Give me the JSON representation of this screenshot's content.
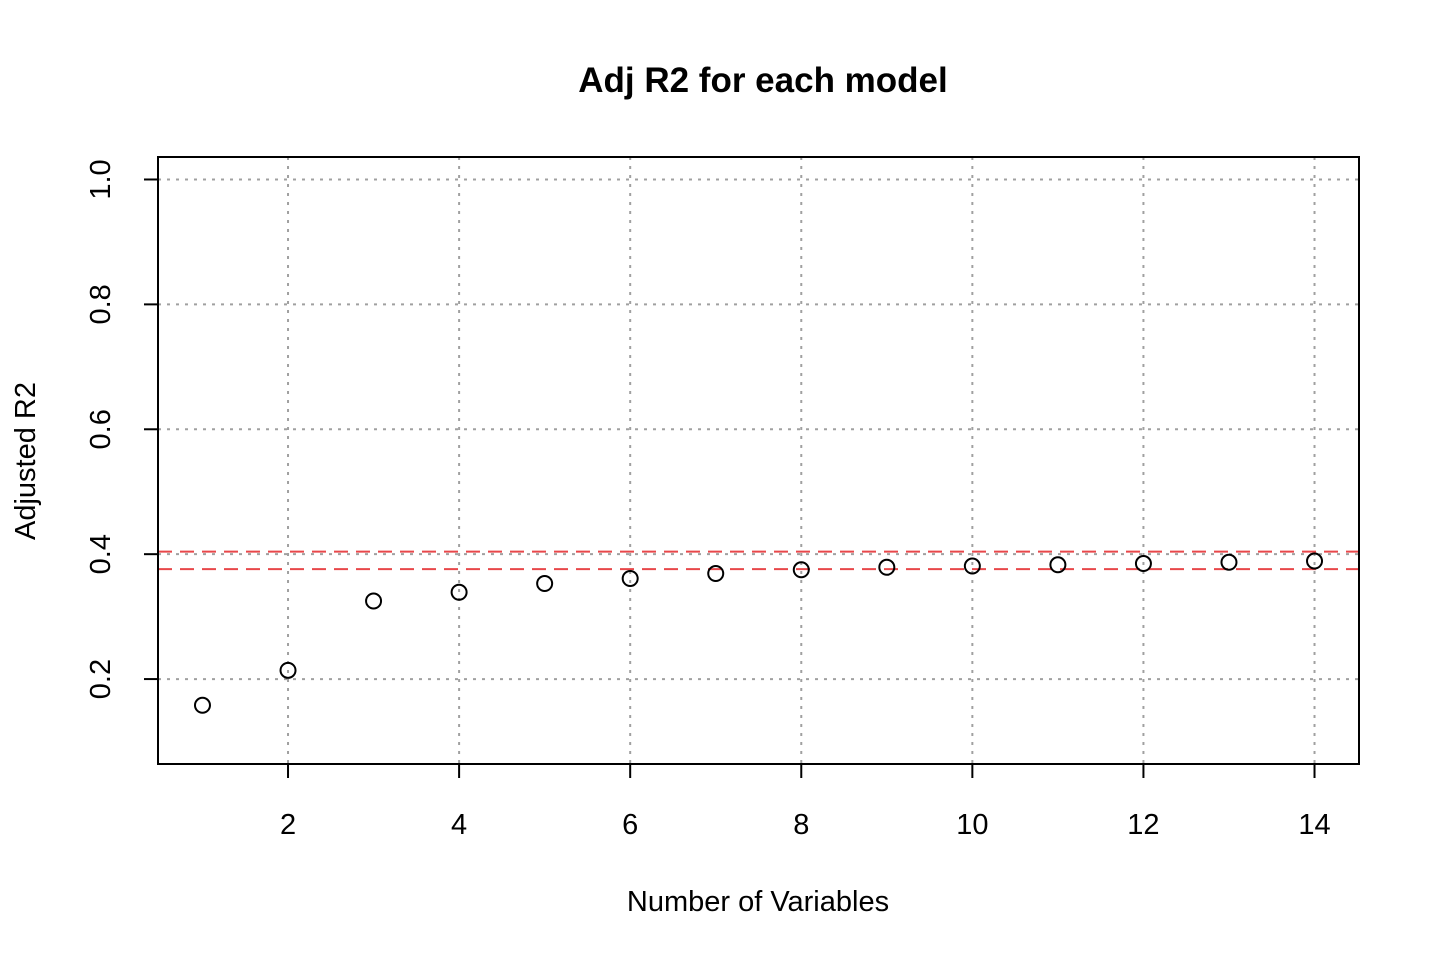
{
  "chart_data": {
    "type": "scatter",
    "title": "Adj R2 for each model",
    "xlabel": "Number of Variables",
    "ylabel": "Adjusted R2",
    "x": [
      1,
      2,
      3,
      4,
      5,
      6,
      7,
      8,
      9,
      10,
      11,
      12,
      13,
      14
    ],
    "y": [
      0.158,
      0.214,
      0.325,
      0.339,
      0.353,
      0.361,
      0.369,
      0.375,
      0.379,
      0.381,
      0.383,
      0.385,
      0.387,
      0.389
    ],
    "xlim": [
      0.48,
      14.52
    ],
    "ylim": [
      0.064,
      1.036
    ],
    "xticks": [
      2,
      4,
      6,
      8,
      10,
      12,
      14
    ],
    "yticks": [
      0.2,
      0.4,
      0.6,
      0.8,
      1.0
    ],
    "xtick_labels": [
      "2",
      "4",
      "6",
      "8",
      "10",
      "12",
      "14"
    ],
    "ytick_labels": [
      "0.2",
      "0.4",
      "0.6",
      "0.8",
      "1.0"
    ],
    "grid": true,
    "hlines": [
      {
        "y": 0.404,
        "color": "#e8474a",
        "style": "dashed"
      },
      {
        "y": 0.376,
        "color": "#e8474a",
        "style": "dashed"
      }
    ],
    "point_marker": "open-circle",
    "colors": {
      "points": "#000000",
      "grid": "#a0a0a0",
      "reference": "#e8474a"
    }
  }
}
